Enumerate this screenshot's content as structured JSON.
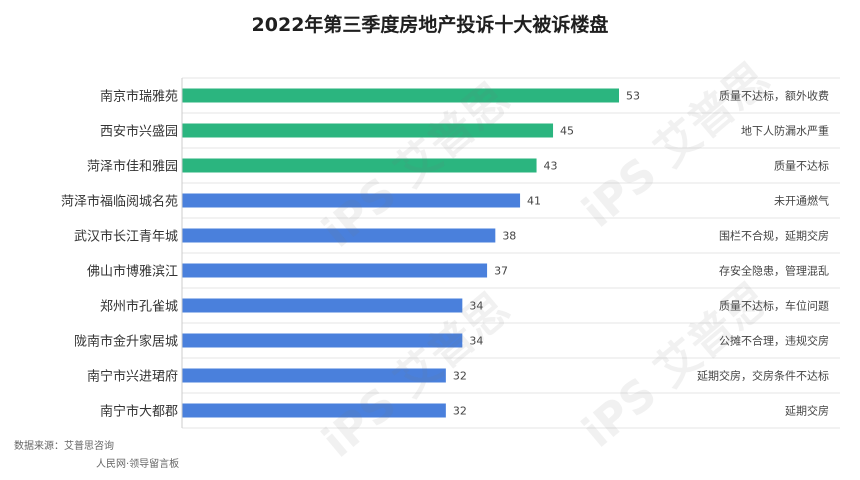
{
  "title": "2022年第三季度房地产投诉十大被诉楼盘",
  "footer": {
    "source": "数据来源：艾普思咨询",
    "note": "人民网·领导留言板"
  },
  "watermark": "iPS 艾普思",
  "colors": {
    "top": "#2bb57f",
    "rest": "#4a80dc",
    "grid": "#e6e6e6"
  },
  "chart_data": {
    "type": "bar",
    "orientation": "horizontal",
    "title": "2022年第三季度房地产投诉十大被诉楼盘",
    "categories": [
      "南京市瑞雅苑",
      "西安市兴盛园",
      "菏泽市佳和雅园",
      "菏泽市福临阅城名苑",
      "武汉市长江青年城",
      "佛山市博雅滨江",
      "郑州市孔雀城",
      "陇南市金升家居城",
      "南宁市兴进珺府",
      "南宁市大都郡"
    ],
    "values": [
      53,
      45,
      43,
      41,
      38,
      37,
      34,
      34,
      32,
      32
    ],
    "notes": [
      "质量不达标，额外收费",
      "地下人防漏水严重",
      "质量不达标",
      "未开通燃气",
      "围栏不合规，延期交房",
      "存安全隐患，管理混乱",
      "质量不达标，车位问题",
      "公摊不合理，违规交房",
      "延期交房，交房条件不达标",
      "延期交房"
    ],
    "highlight_count": 3,
    "xlim": [
      0,
      60
    ],
    "data_labels": true
  }
}
